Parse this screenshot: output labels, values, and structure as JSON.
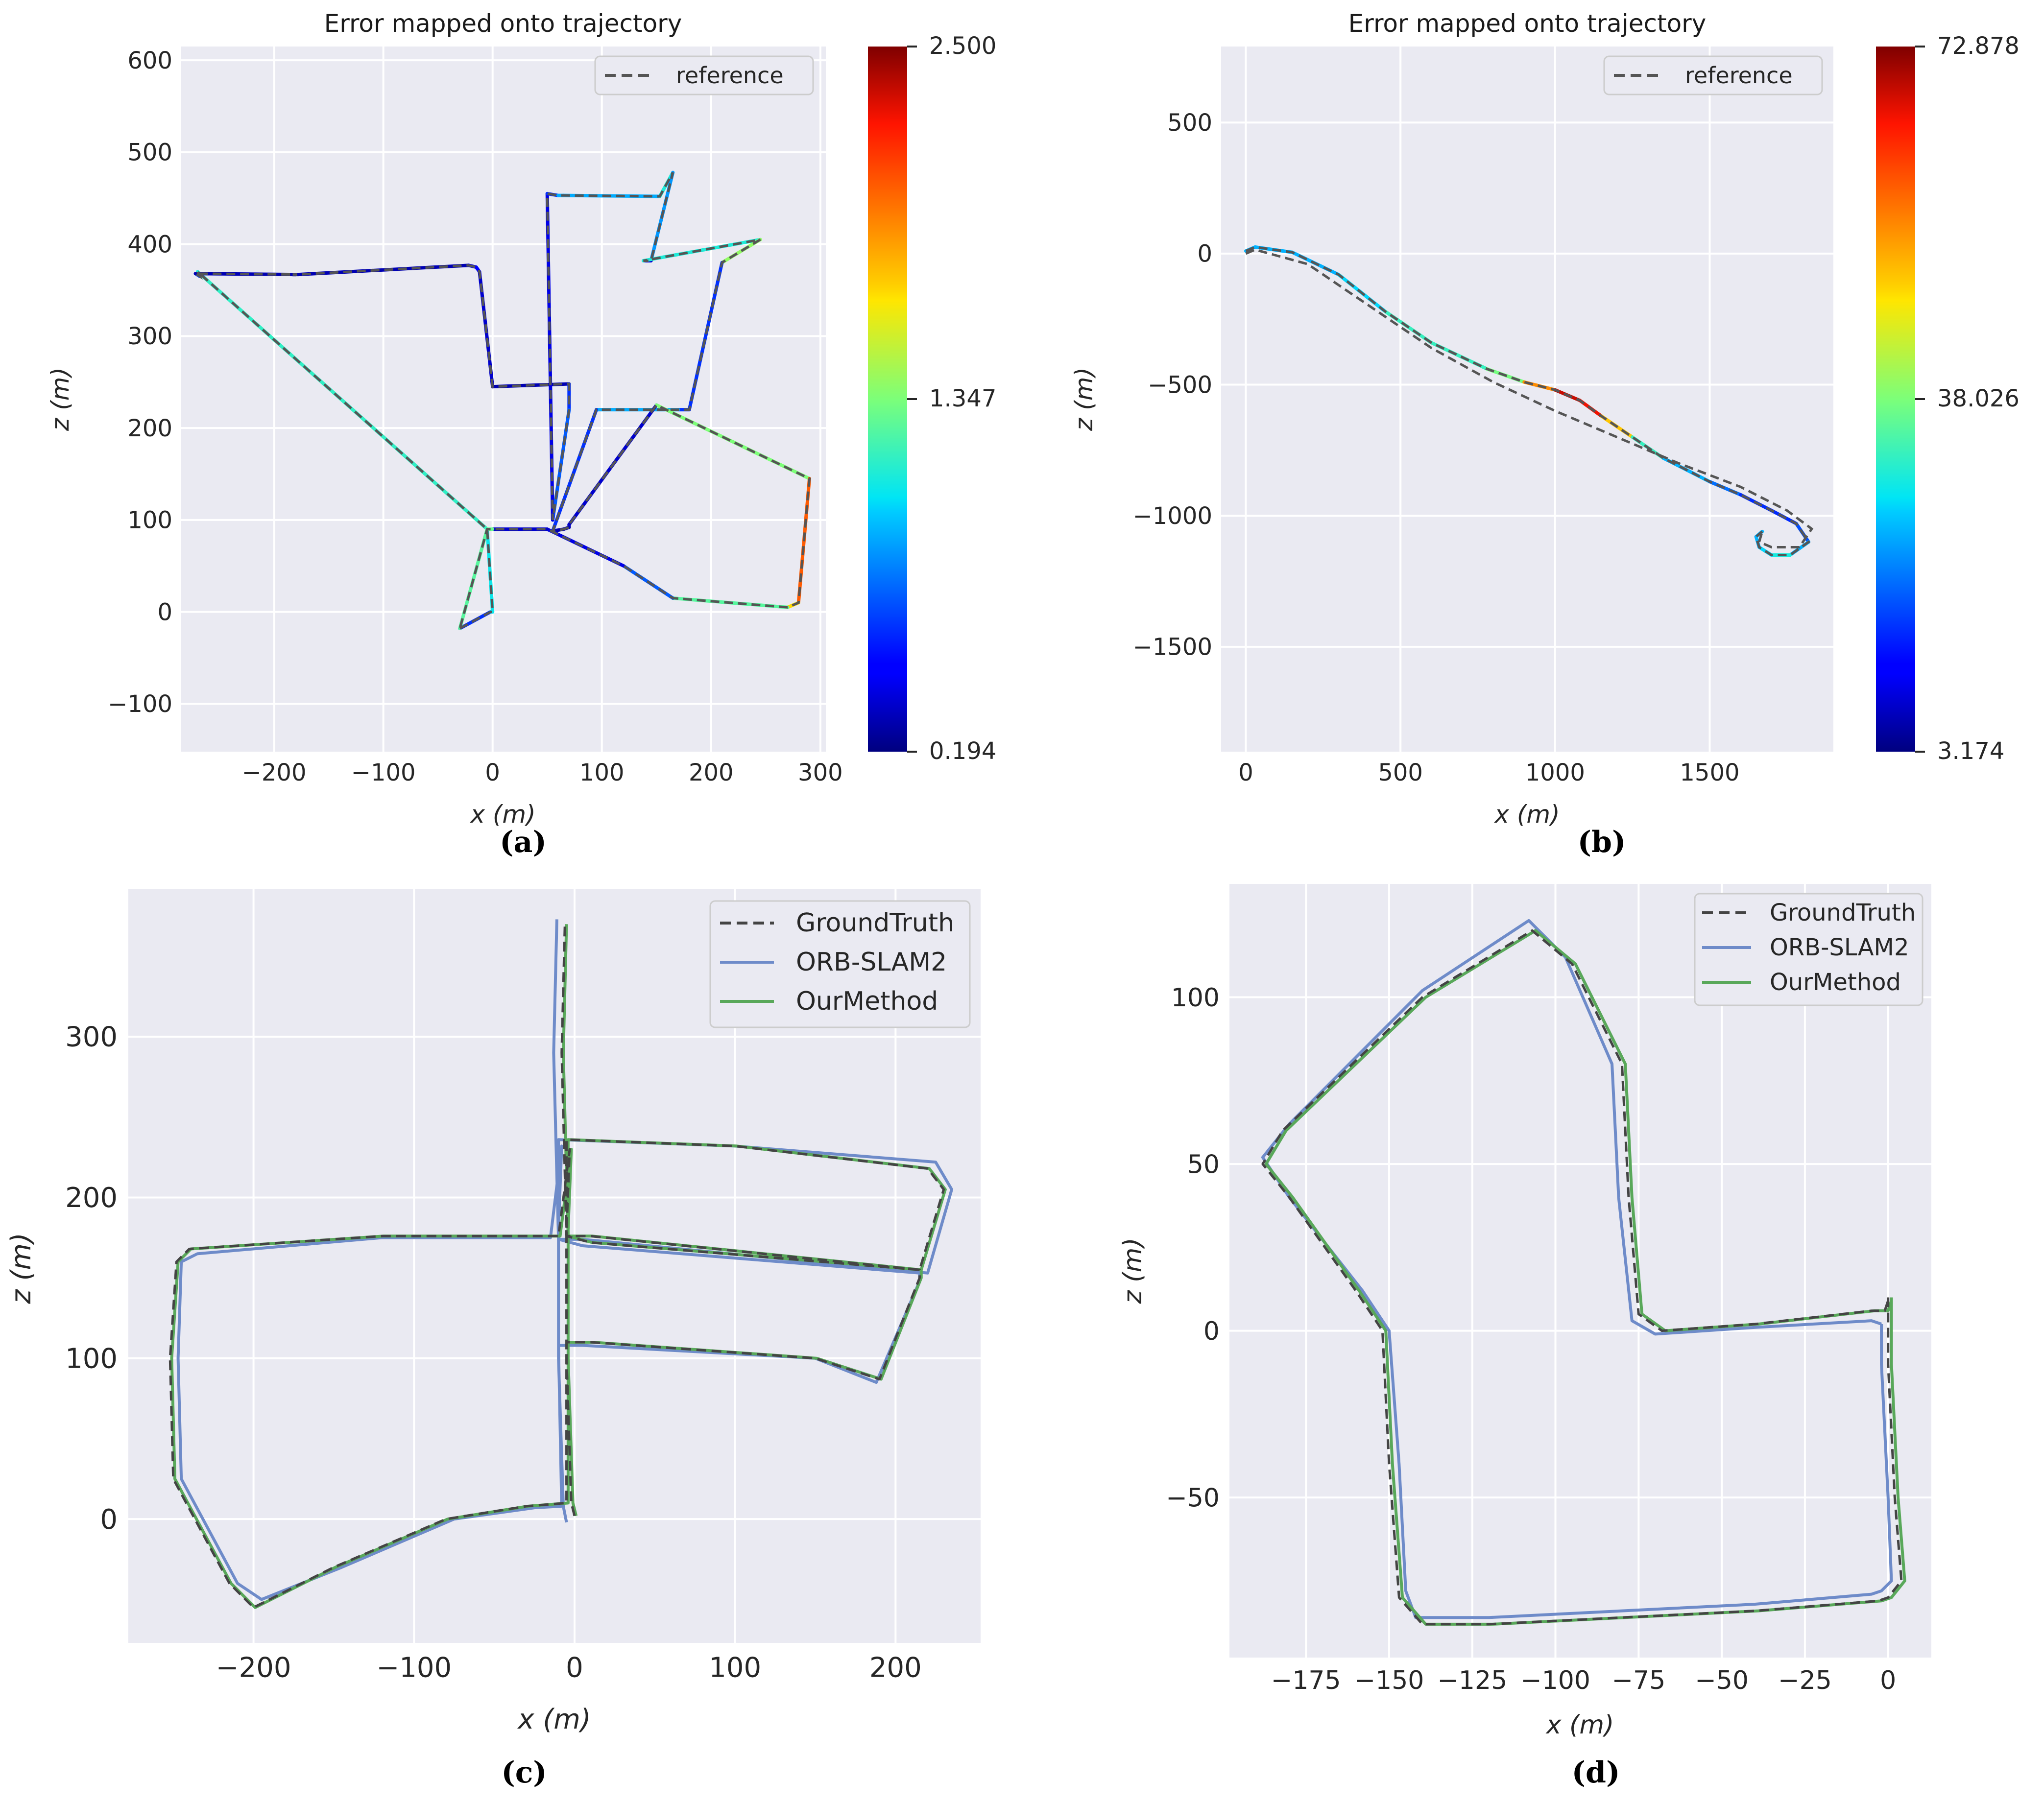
{
  "colors": {
    "axes_bg": "#EAEAF2",
    "grid": "#ffffff",
    "reference": "#555555",
    "orb": "#6E8BC9",
    "ours": "#59A85A",
    "gt": "#444444"
  },
  "chart_data": [
    {
      "id": "a",
      "type": "line",
      "title": "Error mapped onto trajectory",
      "xlabel": "x (m)",
      "ylabel": "z (m)",
      "xlim": [
        -285,
        305
      ],
      "ylim": [
        -152,
        615
      ],
      "xticks": [
        -200,
        -100,
        0,
        100,
        200,
        300
      ],
      "xtick_labels": [
        "−200",
        "−100",
        "0",
        "100",
        "200",
        "300"
      ],
      "yticks": [
        -100,
        0,
        100,
        200,
        300,
        400,
        500,
        600
      ],
      "ytick_labels": [
        "−100",
        "0",
        "100",
        "200",
        "300",
        "400",
        "500",
        "600"
      ],
      "panel_label": "(a)",
      "legend": [
        "reference"
      ],
      "colorbar": {
        "min": 0.194,
        "max": 2.5,
        "tick_labels": [
          "2.500",
          "1.347",
          "0.194"
        ]
      },
      "series": [
        {
          "name": "trajectory",
          "x": [
            -30,
            -2,
            0,
            -5,
            -270,
            -268,
            -272,
            -180,
            -183,
            -178,
            -22,
            -15,
            -12,
            0,
            0,
            70,
            70,
            55,
            50,
            60,
            65,
            153,
            165,
            145,
            138,
            245,
            210,
            180,
            170,
            95,
            55,
            65,
            70,
            70,
            150,
            290,
            280,
            270,
            165,
            120,
            50,
            0,
            -5,
            -30
          ],
          "z": [
            -18,
            0,
            0,
            90,
            370,
            365,
            368,
            367,
            367,
            367,
            377,
            375,
            370,
            245,
            245,
            248,
            220,
            100,
            455,
            453,
            453,
            452,
            478,
            382,
            382,
            405,
            380,
            220,
            220,
            220,
            88,
            90,
            92,
            95,
            225,
            145,
            10,
            5,
            15,
            50,
            90,
            90,
            90,
            -18
          ],
          "error": [
            0.3,
            0.9,
            1.0,
            1.1,
            1.2,
            1.0,
            0.3,
            0.3,
            0.3,
            0.3,
            0.3,
            0.5,
            0.4,
            0.3,
            0.3,
            0.3,
            0.9,
            0.5,
            0.3,
            0.9,
            0.9,
            0.9,
            1.3,
            0.4,
            0.3,
            1.9,
            0.9,
            0.3,
            0.9,
            0.9,
            0.3,
            0.3,
            0.3,
            0.3,
            0.4,
            2.3,
            1.8,
            1.6,
            0.9,
            0.5,
            0.3,
            0.4,
            2.2,
            0.3
          ]
        }
      ]
    },
    {
      "id": "b",
      "type": "line",
      "title": "Error mapped onto trajectory",
      "xlabel": "x (m)",
      "ylabel": "z (m)",
      "xlim": [
        -80,
        1900
      ],
      "ylim": [
        -1900,
        790
      ],
      "xticks": [
        0,
        500,
        1000,
        1500
      ],
      "xtick_labels": [
        "0",
        "500",
        "1000",
        "1500"
      ],
      "yticks": [
        -1500,
        -1000,
        -500,
        0,
        500
      ],
      "ytick_labels": [
        "−1500",
        "−1000",
        "−500",
        "0",
        "500"
      ],
      "panel_label": "(b)",
      "legend": [
        "reference"
      ],
      "colorbar": {
        "min": 3.174,
        "max": 72.878,
        "tick_labels": [
          "72.878",
          "38.026",
          "3.174"
        ]
      },
      "series": [
        {
          "name": "trajectory",
          "x": [
            0,
            30,
            150,
            300,
            450,
            600,
            780,
            900,
            1000,
            1080,
            1150,
            1250,
            1350,
            1500,
            1600,
            1700,
            1780,
            1820,
            1760,
            1700,
            1660,
            1650,
            1670
          ],
          "z": [
            10,
            25,
            5,
            -80,
            -220,
            -340,
            -440,
            -490,
            -520,
            -560,
            -620,
            -700,
            -780,
            -870,
            -920,
            -980,
            -1030,
            -1100,
            -1150,
            -1150,
            -1120,
            -1080,
            -1060
          ],
          "error": [
            25,
            25,
            25,
            25,
            30,
            35,
            30,
            45,
            65,
            72,
            60,
            40,
            25,
            25,
            15,
            15,
            15,
            20,
            30,
            30,
            25,
            25,
            25
          ]
        },
        {
          "name": "reference",
          "x": [
            0,
            30,
            200,
            400,
            600,
            800,
            1000,
            1200,
            1400,
            1600,
            1750,
            1830,
            1790,
            1700,
            1660,
            1670
          ],
          "z": [
            0,
            15,
            -40,
            -200,
            -360,
            -490,
            -600,
            -700,
            -800,
            -890,
            -980,
            -1050,
            -1120,
            -1120,
            -1100,
            -1060
          ]
        }
      ]
    },
    {
      "id": "c",
      "type": "line",
      "title": "",
      "xlabel": "x (m)",
      "ylabel": "z (m)",
      "xlim": [
        -278,
        253
      ],
      "ylim": [
        -77,
        392
      ],
      "xticks": [
        -200,
        -100,
        0,
        100,
        200
      ],
      "xtick_labels": [
        "−200",
        "−100",
        "0",
        "100",
        "200"
      ],
      "yticks": [
        0,
        100,
        200,
        300
      ],
      "ytick_labels": [
        "0",
        "100",
        "200",
        "300"
      ],
      "panel_label": "(c)",
      "legend": [
        "GroundTruth",
        "ORB-SLAM2",
        "OurMethod"
      ],
      "series": [
        {
          "name": "GroundTruth",
          "x": [
            0,
            -2,
            -5,
            -5,
            -3,
            -10,
            -120,
            -240,
            -248,
            -252,
            -250,
            -215,
            -200,
            -150,
            -80,
            -30,
            -5,
            -5,
            10,
            150,
            190,
            215,
            215,
            10,
            -5,
            -5,
            -5,
            100,
            220,
            230,
            215,
            10,
            -5,
            -8,
            -6
          ],
          "z": [
            2,
            10,
            100,
            180,
            230,
            176,
            176,
            168,
            160,
            100,
            25,
            -40,
            -55,
            -30,
            0,
            8,
            10,
            110,
            110,
            100,
            87,
            150,
            155,
            172,
            176,
            236,
            236,
            232,
            218,
            205,
            155,
            176,
            176,
            290,
            370
          ]
        },
        {
          "name": "ORB-SLAM2",
          "x": [
            -5,
            -7,
            -10,
            -10,
            -8,
            -15,
            -120,
            -235,
            -245,
            -247,
            -245,
            -210,
            -195,
            -145,
            -75,
            -25,
            -8,
            -10,
            5,
            150,
            188,
            215,
            215,
            5,
            -10,
            -10,
            -10,
            100,
            225,
            235,
            220,
            5,
            -10,
            -13,
            -11
          ],
          "z": [
            -2,
            8,
            100,
            180,
            232,
            175,
            175,
            165,
            160,
            100,
            25,
            -40,
            -50,
            -30,
            0,
            7,
            8,
            108,
            108,
            100,
            85,
            148,
            153,
            170,
            174,
            236,
            236,
            232,
            222,
            205,
            153,
            174,
            174,
            290,
            373
          ]
        },
        {
          "name": "OurMethod",
          "x": [
            1,
            -1,
            -4,
            -4,
            -2,
            -9,
            -119,
            -239,
            -247,
            -251,
            -249,
            -214,
            -199,
            -149,
            -79,
            -29,
            -4,
            -4,
            11,
            151,
            191,
            216,
            216,
            11,
            -4,
            -4,
            -4,
            101,
            221,
            231,
            216,
            11,
            -4,
            -7,
            -5
          ],
          "z": [
            2,
            10,
            100,
            180,
            230,
            176,
            176,
            168,
            160,
            100,
            25,
            -40,
            -55,
            -30,
            0,
            8,
            10,
            110,
            110,
            100,
            87,
            150,
            155,
            172,
            176,
            236,
            236,
            232,
            218,
            205,
            155,
            176,
            176,
            290,
            370
          ]
        }
      ]
    },
    {
      "id": "d",
      "type": "line",
      "title": "",
      "xlabel": "x (m)",
      "ylabel": "z (m)",
      "xlim": [
        -198,
        13
      ],
      "ylim": [
        -98,
        134
      ],
      "xticks": [
        -175,
        -150,
        -125,
        -100,
        -75,
        -50,
        -25,
        0
      ],
      "xtick_labels": [
        "−175",
        "−150",
        "−125",
        "−100",
        "−75",
        "−50",
        "−25",
        "0"
      ],
      "yticks": [
        -50,
        0,
        50,
        100
      ],
      "ytick_labels": [
        "−50",
        "0",
        "50",
        "100"
      ],
      "panel_label": "(d)",
      "legend": [
        "GroundTruth",
        "ORB-SLAM2",
        "OurMethod"
      ],
      "series": [
        {
          "name": "GroundTruth",
          "x": [
            0,
            0,
            0,
            2,
            4,
            0,
            -3,
            -40,
            -80,
            -120,
            -140,
            -147,
            -150,
            -152,
            -160,
            -180,
            -188,
            -182,
            -140,
            -107,
            -95,
            -80,
            -78,
            -75,
            -68,
            -40,
            -5,
            -1,
            0
          ],
          "z": [
            10,
            5,
            -10,
            -50,
            -75,
            -80,
            -81,
            -84,
            -86,
            -88,
            -88,
            -80,
            -40,
            0,
            12,
            40,
            50,
            60,
            100,
            120,
            110,
            80,
            40,
            5,
            0,
            2,
            6,
            6,
            9
          ]
        },
        {
          "name": "ORB-SLAM2",
          "x": [
            -2,
            -2,
            -2,
            0,
            1,
            -2,
            -5,
            -40,
            -80,
            -120,
            -142,
            -145,
            -147,
            -150,
            -158,
            -180,
            -188,
            -180,
            -140,
            -108,
            -97,
            -83,
            -81,
            -77,
            -70,
            -40,
            -5,
            -2
          ],
          "z": [
            2,
            -5,
            -10,
            -50,
            -75,
            -78,
            -79,
            -82,
            -84,
            -86,
            -86,
            -78,
            -40,
            0,
            12,
            40,
            52,
            62,
            102,
            123,
            112,
            80,
            40,
            3,
            -1,
            1,
            3,
            2
          ]
        },
        {
          "name": "OurMethod",
          "x": [
            1,
            1,
            1,
            3,
            5,
            1,
            -2,
            -39,
            -79,
            -119,
            -139,
            -146,
            -149,
            -151,
            -159,
            -179,
            -187,
            -181,
            -139,
            -106,
            -94,
            -79,
            -77,
            -74,
            -67,
            -39,
            -4,
            0,
            1
          ],
          "z": [
            10,
            5,
            -10,
            -50,
            -75,
            -80,
            -81,
            -84,
            -86,
            -88,
            -88,
            -80,
            -40,
            0,
            12,
            40,
            50,
            60,
            100,
            120,
            110,
            80,
            40,
            5,
            0,
            2,
            6,
            6,
            9
          ]
        }
      ]
    }
  ]
}
